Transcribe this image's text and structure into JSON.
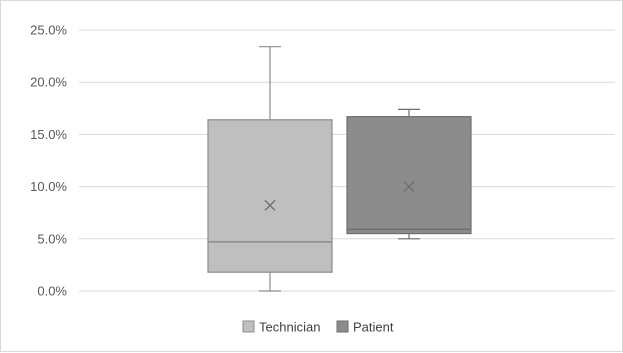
{
  "chart_data": {
    "type": "box",
    "y_ticks": [
      "0.0%",
      "5.0%",
      "10.0%",
      "15.0%",
      "20.0%",
      "25.0%"
    ],
    "ylim": [
      0,
      25
    ],
    "grid": true,
    "legend_position": "bottom",
    "series": [
      {
        "name": "Technician",
        "color": "#bfbfbf",
        "edge_color": "#8c8c8c",
        "min": 0.0,
        "q1": 1.8,
        "median": 4.7,
        "q3": 16.4,
        "max": 23.4,
        "mean": 8.2
      },
      {
        "name": "Patient",
        "color": "#8c8c8c",
        "edge_color": "#6e6e6e",
        "min": 5.0,
        "q1": 5.5,
        "median": 5.9,
        "q3": 16.7,
        "max": 17.4,
        "mean": 10.0
      }
    ]
  }
}
